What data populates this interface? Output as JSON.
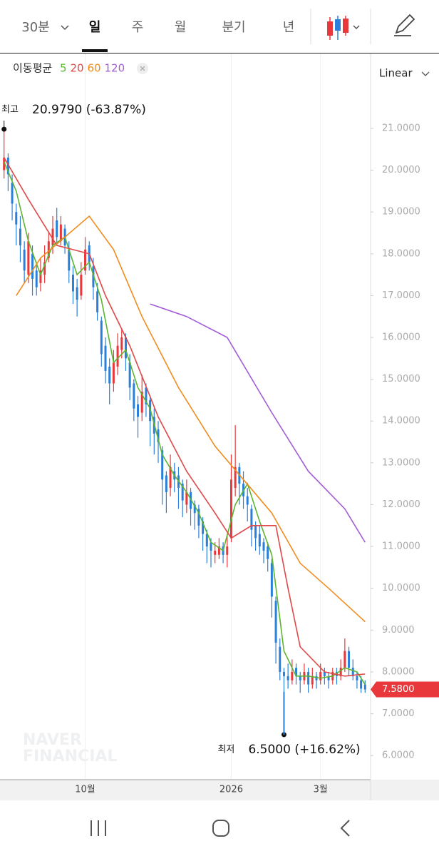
{
  "tabs": {
    "items": [
      "30분",
      "일",
      "주",
      "월",
      "분기",
      "년"
    ],
    "active": 1,
    "scale_mode": "Linear"
  },
  "watermark": [
    "NAVER",
    "FINANCIAL"
  ],
  "chart_data": {
    "type": "candlestick",
    "indicator_label": "이동평균",
    "xlim": [
      -1,
      90
    ],
    "ylim": [
      5.44,
      22.79
    ],
    "xticks": [
      {
        "value": 20,
        "label": "10월"
      },
      {
        "value": 56,
        "label": "2026"
      },
      {
        "value": 78,
        "label": "3월"
      }
    ],
    "yticks": [
      {
        "value": 6,
        "label": "6.0000"
      },
      {
        "value": 7,
        "label": "7.0000"
      },
      {
        "value": 8,
        "label": "8.0000"
      },
      {
        "value": 9,
        "label": "9.0000"
      },
      {
        "value": 10,
        "label": "10.0000"
      },
      {
        "value": 11,
        "label": "11.0000"
      },
      {
        "value": 12,
        "label": "12.0000"
      },
      {
        "value": 13,
        "label": "13.0000"
      },
      {
        "value": 14,
        "label": "14.0000"
      },
      {
        "value": 15,
        "label": "15.0000"
      },
      {
        "value": 16,
        "label": "16.0000"
      },
      {
        "value": 17,
        "label": "17.0000"
      },
      {
        "value": 18,
        "label": "18.0000"
      },
      {
        "value": 19,
        "label": "19.0000"
      },
      {
        "value": 20,
        "label": "20.0000"
      },
      {
        "value": 21,
        "label": "21.0000"
      }
    ],
    "up_color": "#e8383b",
    "down_color": "#2a7fd9",
    "candles": {
      "open": [
        20.0,
        20.3,
        19.7,
        19.0,
        18.6,
        18.1,
        17.5,
        18.0,
        17.6,
        17.3,
        17.5,
        17.9,
        18.2,
        18.8,
        18.3,
        18.6,
        18.1,
        17.5,
        17.2,
        17.0,
        17.6,
        18.2,
        17.7,
        17.1,
        16.4,
        15.8,
        15.3,
        14.9,
        15.3,
        15.7,
        16.0,
        15.4,
        14.9,
        14.4,
        14.2,
        14.8,
        14.5,
        14.1,
        13.8,
        13.3,
        12.7,
        12.4,
        12.8,
        12.7,
        12.5,
        12.0,
        12.3,
        12.0,
        11.9,
        11.6,
        11.3,
        11.1,
        10.8,
        10.8,
        11.0,
        10.8,
        11.2,
        12.4,
        12.9,
        12.5,
        12.2,
        11.9,
        11.5,
        11.3,
        11.1,
        11.0,
        10.6,
        9.7,
        8.6,
        8.0,
        7.9,
        7.8,
        8.1,
        7.9,
        7.8,
        8.0,
        7.7,
        7.9,
        7.8,
        8.0,
        7.9,
        7.8,
        8.0,
        7.9,
        8.1,
        8.5,
        8.1,
        7.9,
        7.8,
        7.7
      ],
      "high": [
        20.979,
        20.4,
        19.9,
        19.2,
        18.9,
        18.3,
        18.5,
        18.2,
        17.8,
        17.9,
        18.2,
        18.5,
        18.9,
        19.1,
        18.9,
        18.7,
        18.3,
        17.7,
        17.4,
        17.8,
        18.4,
        18.3,
        17.9,
        17.3,
        16.5,
        16.0,
        15.5,
        15.7,
        16.1,
        16.2,
        16.1,
        15.6,
        15.0,
        14.6,
        15.1,
        14.9,
        14.6,
        14.3,
        14.0,
        13.4,
        12.8,
        13.2,
        13.0,
        12.9,
        12.6,
        12.6,
        12.4,
        12.1,
        12.0,
        11.7,
        11.4,
        11.2,
        11.1,
        11.2,
        11.1,
        11.3,
        13.2,
        13.9,
        13.0,
        12.8,
        12.4,
        12.0,
        11.6,
        11.5,
        11.2,
        11.1,
        10.7,
        9.8,
        8.8,
        8.1,
        8.2,
        8.3,
        8.2,
        8.0,
        8.2,
        8.1,
        8.1,
        8.0,
        8.2,
        8.1,
        8.0,
        8.1,
        8.1,
        8.3,
        8.8,
        8.6,
        8.3,
        8.0,
        7.9,
        7.8
      ],
      "low": [
        19.8,
        19.5,
        18.8,
        18.2,
        17.8,
        17.3,
        17.3,
        17.0,
        17.0,
        17.1,
        17.3,
        17.8,
        18.0,
        18.2,
        18.2,
        18.0,
        17.3,
        16.8,
        16.5,
        16.9,
        17.5,
        17.6,
        16.9,
        16.4,
        15.3,
        14.9,
        14.4,
        14.7,
        15.1,
        15.5,
        15.2,
        14.5,
        14.0,
        13.6,
        14.0,
        14.1,
        13.4,
        13.2,
        13.0,
        12.0,
        11.8,
        12.2,
        12.3,
        11.9,
        11.7,
        11.8,
        11.5,
        11.4,
        11.2,
        10.9,
        10.6,
        10.5,
        10.6,
        10.7,
        10.6,
        10.5,
        11.1,
        12.2,
        12.0,
        11.9,
        11.6,
        11.0,
        10.9,
        10.8,
        10.6,
        10.4,
        9.3,
        8.2,
        7.8,
        6.5,
        7.6,
        7.7,
        7.7,
        7.5,
        7.7,
        7.5,
        7.6,
        7.6,
        7.7,
        7.7,
        7.6,
        7.7,
        7.7,
        7.8,
        8.0,
        7.9,
        7.8,
        7.6,
        7.5,
        7.5
      ],
      "close": [
        20.3,
        19.9,
        19.2,
        18.7,
        18.2,
        17.6,
        18.3,
        17.4,
        17.2,
        17.6,
        17.8,
        18.3,
        18.6,
        18.4,
        18.7,
        18.2,
        17.6,
        17.1,
        16.9,
        17.5,
        18.1,
        17.8,
        17.2,
        16.6,
        15.6,
        15.2,
        14.9,
        15.4,
        15.8,
        16.0,
        15.5,
        14.8,
        14.3,
        14.1,
        14.7,
        14.4,
        14.0,
        13.7,
        13.5,
        12.6,
        12.3,
        12.9,
        12.6,
        12.4,
        12.1,
        12.3,
        11.9,
        11.8,
        11.5,
        11.3,
        11.0,
        10.9,
        10.9,
        11.0,
        10.8,
        11.0,
        12.6,
        12.9,
        12.5,
        12.2,
        12.0,
        11.4,
        11.2,
        11.0,
        10.9,
        10.7,
        9.8,
        8.7,
        8.0,
        7.9,
        7.8,
        8.0,
        7.9,
        7.8,
        8.0,
        7.7,
        7.9,
        7.8,
        8.0,
        7.9,
        7.8,
        8.0,
        7.9,
        8.1,
        8.5,
        8.1,
        7.9,
        7.8,
        7.6,
        7.58
      ]
    },
    "series": [
      {
        "name": "5",
        "color": "#5cb531",
        "x": [
          0,
          3,
          6,
          9,
          12,
          15,
          18,
          21,
          24,
          27,
          30,
          33,
          36,
          39,
          42,
          45,
          48,
          51,
          54,
          57,
          60,
          63,
          66,
          69,
          72,
          75,
          78,
          81,
          84,
          87,
          89
        ],
        "values": [
          20.2,
          19.5,
          18.3,
          17.5,
          18.2,
          18.4,
          17.5,
          17.8,
          16.9,
          15.4,
          15.7,
          14.8,
          14.3,
          13.2,
          12.7,
          12.3,
          11.8,
          11.1,
          10.9,
          12.0,
          12.5,
          11.6,
          10.8,
          8.5,
          7.9,
          7.9,
          7.85,
          7.9,
          8.1,
          8.0,
          7.7
        ]
      },
      {
        "name": "20",
        "color": "#e04848",
        "x": [
          0,
          6,
          13,
          21,
          25,
          31,
          38,
          45,
          52,
          56,
          61,
          67,
          70,
          73,
          79,
          84,
          89
        ],
        "values": [
          20.3,
          19.3,
          18.2,
          18.0,
          17.0,
          15.8,
          14.1,
          12.8,
          11.8,
          11.2,
          11.5,
          11.5,
          10.0,
          8.6,
          8.0,
          7.9,
          7.95
        ]
      },
      {
        "name": "60",
        "color": "#f08c1e",
        "x": [
          3,
          9,
          21,
          27,
          34,
          43,
          52,
          59,
          66,
          73,
          80,
          89
        ],
        "values": [
          17.0,
          17.9,
          18.9,
          18.1,
          16.5,
          14.8,
          13.4,
          12.6,
          11.8,
          10.6,
          10.0,
          9.2
        ]
      },
      {
        "name": "120",
        "color": "#a35cd6",
        "x": [
          36,
          45,
          55,
          66,
          75,
          84,
          89
        ],
        "values": [
          16.8,
          16.5,
          16.0,
          14.2,
          12.8,
          11.9,
          11.1
        ]
      }
    ],
    "current_price": {
      "value": 7.58,
      "label": "7.5800",
      "color": "#e8383b"
    },
    "annotations": [
      {
        "label": "최고",
        "x": 0,
        "value": 20.979,
        "text": "20.9790 (-63.87%)"
      },
      {
        "label": "최저",
        "x": 69,
        "value": 6.5,
        "text": "6.5000 (+16.62%)"
      }
    ]
  }
}
